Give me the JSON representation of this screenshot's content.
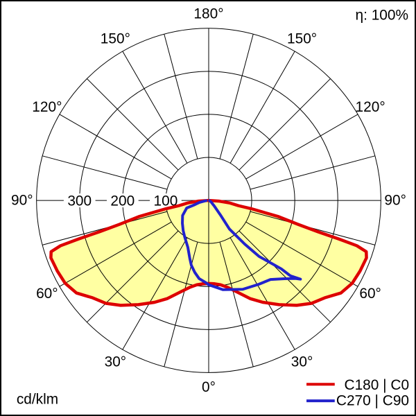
{
  "header": {
    "efficiency_label": "η: 100%"
  },
  "footer": {
    "unit_label": "cd/klm"
  },
  "legend": [
    {
      "label": "C180 | C0",
      "color": "#dd0000"
    },
    {
      "label": "C270 | C90",
      "color": "#2222cc"
    }
  ],
  "chart_data": {
    "type": "polar_photometric_intensity_diagram",
    "unit": "cd/klm",
    "efficiency_percent": 100,
    "gamma_axis": {
      "spoke_step_deg": 15,
      "label_step_deg": 30,
      "labels": [
        {
          "gamma": 0,
          "text": "0°"
        },
        {
          "gamma": 30,
          "text": "30°"
        },
        {
          "gamma": 60,
          "text": "60°"
        },
        {
          "gamma": 90,
          "text": "90°"
        },
        {
          "gamma": 120,
          "text": "120°"
        },
        {
          "gamma": 150,
          "text": "150°"
        },
        {
          "gamma": 180,
          "text": "180°"
        }
      ]
    },
    "r_axis": {
      "max": 400,
      "rings": [
        100,
        200,
        300,
        400
      ],
      "tick_values": [
        300,
        200,
        100
      ],
      "tick_labels": [
        "300",
        "200",
        "100"
      ]
    },
    "series": [
      {
        "name": "C180 | C0",
        "color": "#dd0000",
        "fill": "#ffffa2",
        "symmetric": true,
        "profile_gamma_cd": [
          [
            90,
            0
          ],
          [
            86,
            25
          ],
          [
            83,
            50
          ],
          [
            80,
            70
          ],
          [
            79,
            100
          ],
          [
            77,
            165
          ],
          [
            75,
            215
          ],
          [
            74,
            265
          ],
          [
            73.5,
            315
          ],
          [
            73,
            360
          ],
          [
            72,
            385
          ],
          [
            70,
            390
          ],
          [
            65,
            388
          ],
          [
            60,
            385
          ],
          [
            55,
            375
          ],
          [
            50,
            352
          ],
          [
            45,
            338
          ],
          [
            40,
            318
          ],
          [
            34,
            292
          ],
          [
            28,
            268
          ],
          [
            23,
            248
          ],
          [
            17,
            222
          ],
          [
            12,
            206
          ],
          [
            8,
            198
          ],
          [
            4,
            194
          ],
          [
            0,
            193
          ]
        ]
      },
      {
        "name": "C270 | C90",
        "color": "#2222cc",
        "path_gamma_cd": [
          [
            -85,
            6
          ],
          [
            -78,
            22
          ],
          [
            -73,
            34
          ],
          [
            -71,
            54
          ],
          [
            -60,
            70
          ],
          [
            -49,
            81
          ],
          [
            -40,
            92
          ],
          [
            -33,
            102
          ],
          [
            -24,
            119
          ],
          [
            -18,
            142
          ],
          [
            -15,
            156
          ],
          [
            -11,
            170
          ],
          [
            -7,
            183
          ],
          [
            -2,
            191
          ],
          [
            0,
            196
          ],
          [
            9,
            210
          ],
          [
            21,
            221
          ],
          [
            31,
            227
          ],
          [
            38,
            233
          ],
          [
            44,
            253
          ],
          [
            48,
            271
          ],
          [
            49.4,
            281
          ],
          [
            47.3,
            258
          ],
          [
            46.7,
            232
          ],
          [
            42,
            175
          ],
          [
            41,
            155
          ],
          [
            39.5,
            131
          ],
          [
            36,
            82
          ],
          [
            39,
            43
          ],
          [
            45,
            18
          ],
          [
            60,
            6
          ],
          [
            80,
            2
          ]
        ]
      }
    ]
  }
}
